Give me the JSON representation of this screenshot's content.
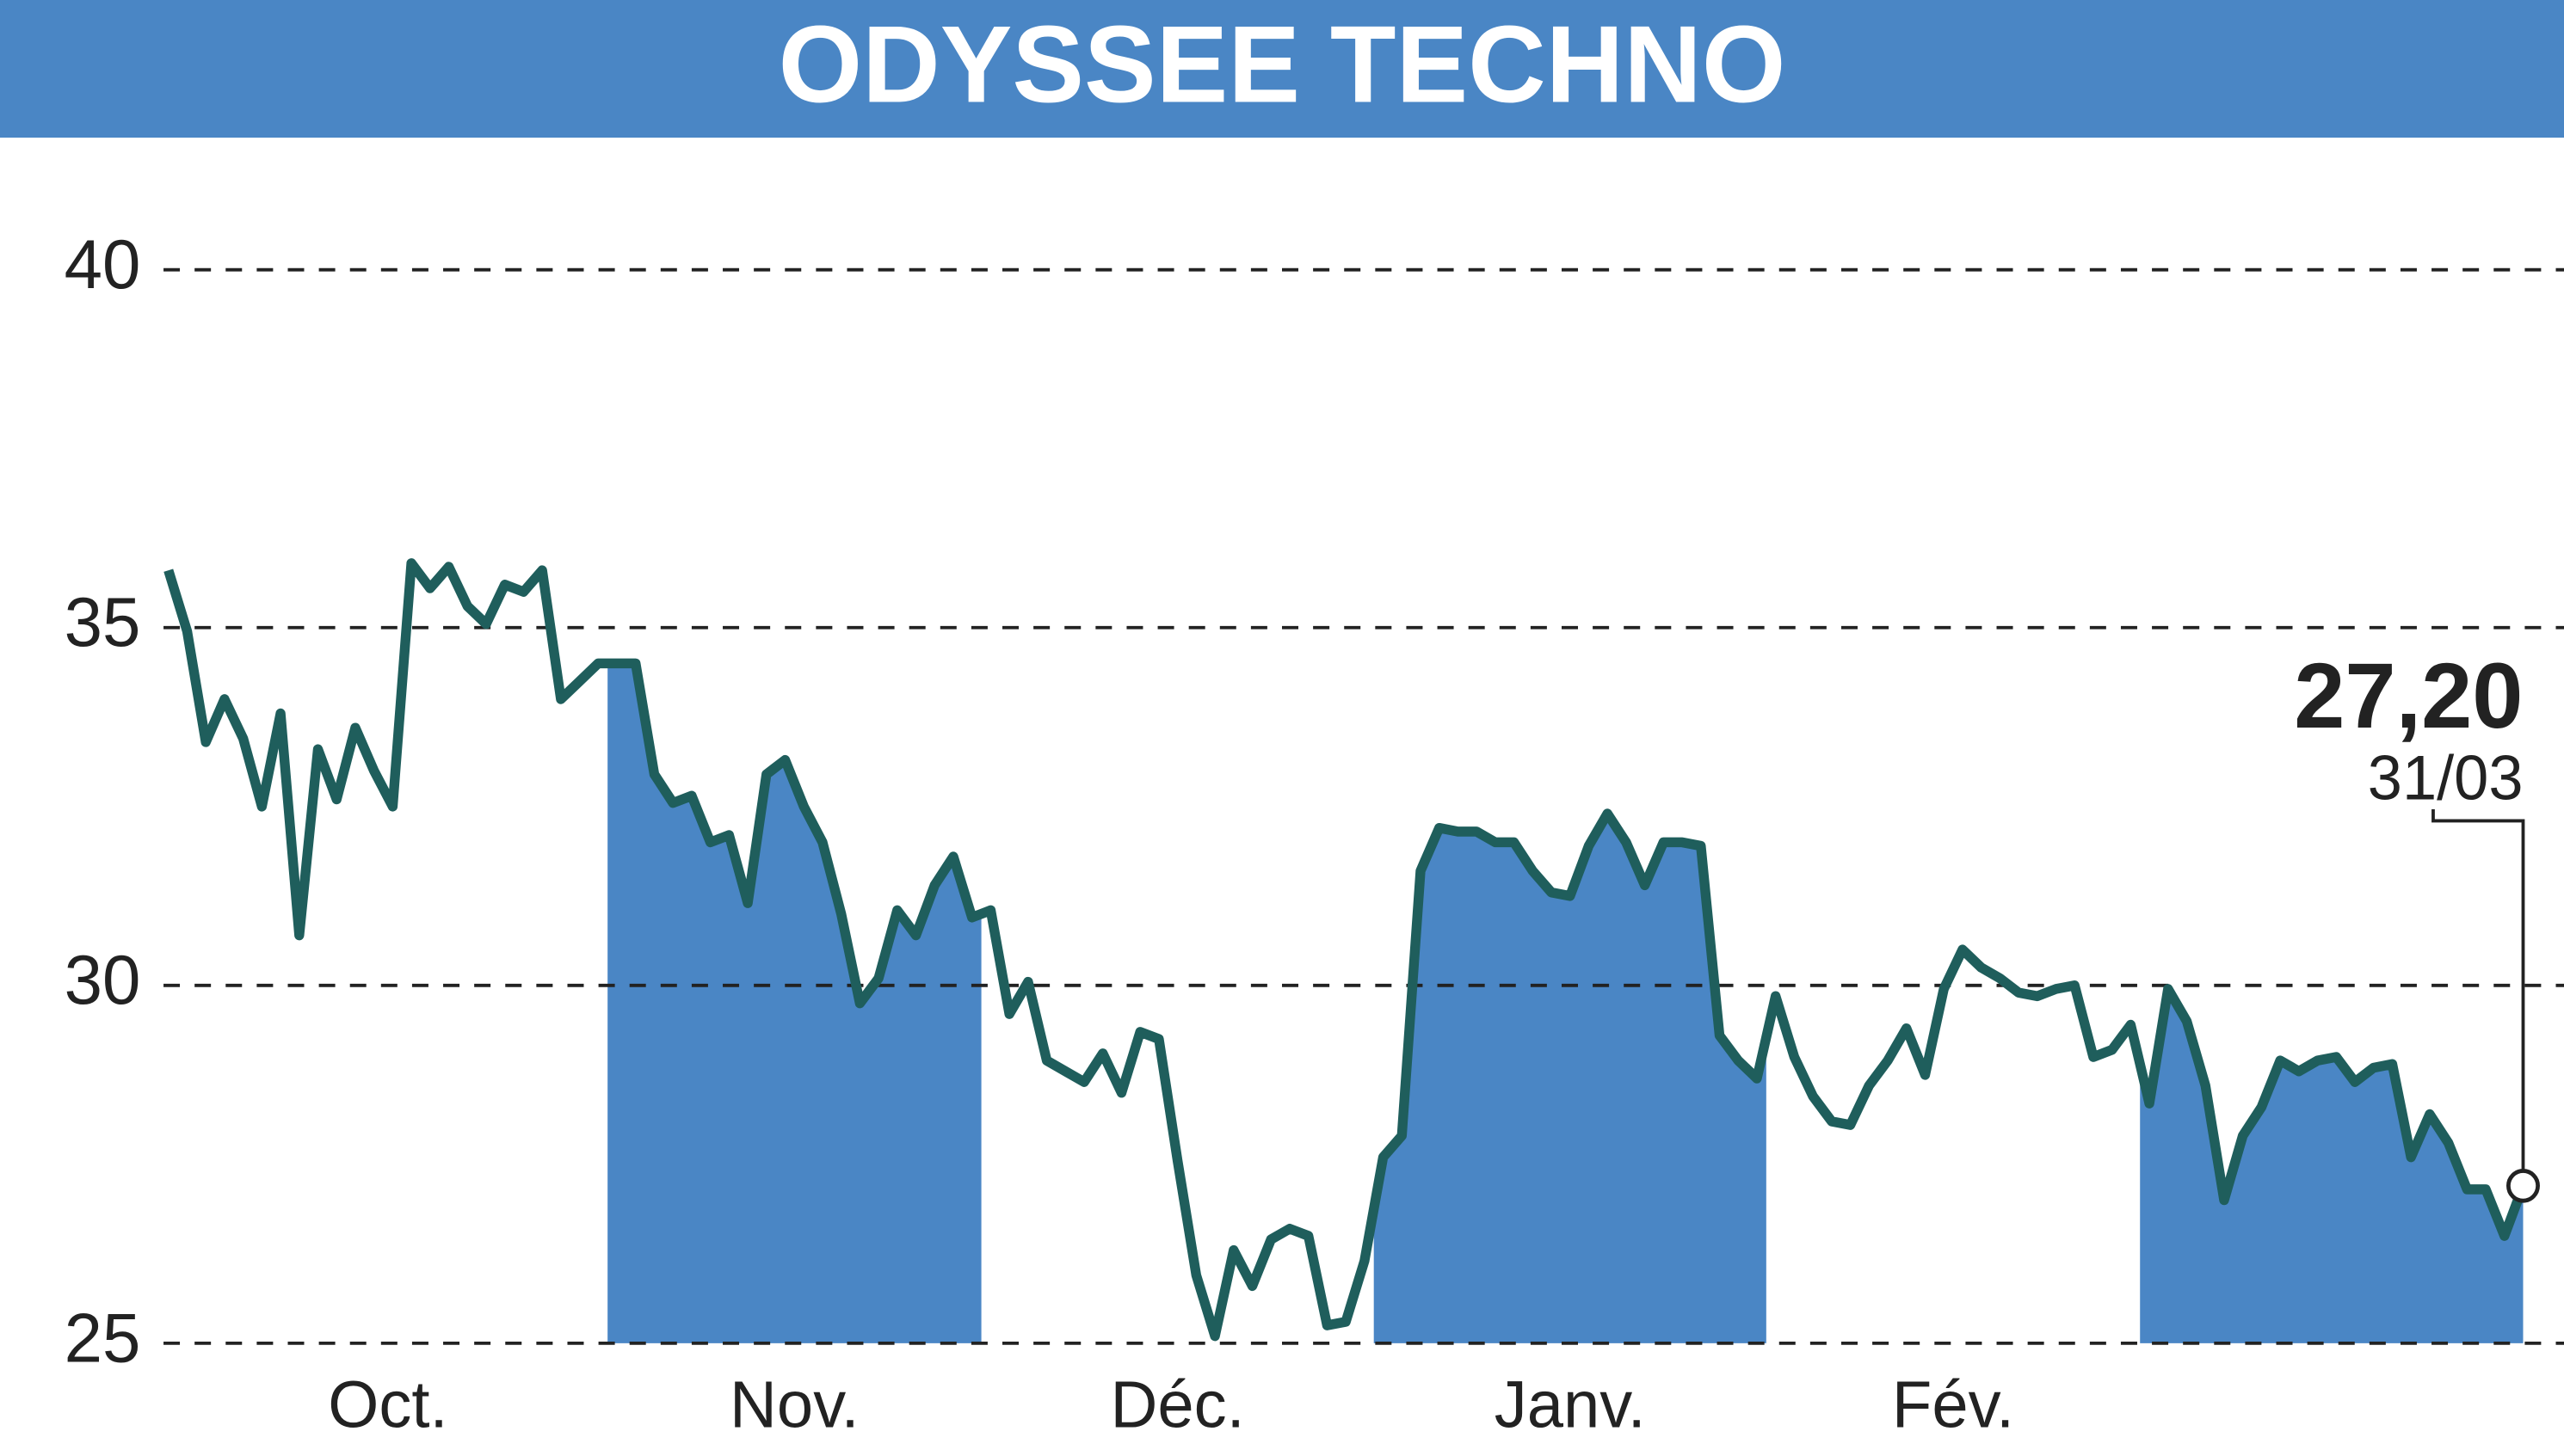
{
  "chart_data": {
    "type": "line",
    "title": "ODYSSEE TECHNO",
    "color": "#1f5e5c",
    "fill_color": "#4a86c5",
    "grid": true,
    "ylim": [
      25,
      41.8
    ],
    "yticks": [
      25,
      30,
      35,
      40
    ],
    "months": [
      {
        "name": "Oct.",
        "shaded": false,
        "values": [
          35.8,
          34.95,
          33.4,
          34.0,
          33.45,
          32.5,
          33.8,
          30.7,
          33.3,
          32.6,
          33.6,
          33.0,
          32.5,
          35.9,
          35.55,
          35.85,
          35.3,
          35.05,
          35.6,
          35.5,
          35.8,
          34.0,
          34.25,
          34.5
        ]
      },
      {
        "name": "Nov.",
        "shaded": true,
        "values": [
          34.5,
          34.5,
          32.95,
          32.55,
          32.65,
          32.0,
          32.1,
          31.15,
          32.95,
          33.15,
          32.5,
          32.0,
          31.0,
          29.75,
          30.1,
          31.05,
          30.7,
          31.4,
          31.8,
          30.95
        ]
      },
      {
        "name": "Déc.",
        "shaded": false,
        "values": [
          31.05,
          29.6,
          30.05,
          28.95,
          28.8,
          28.65,
          29.05,
          28.5,
          29.35,
          29.25,
          27.55,
          25.95,
          25.1,
          26.3,
          25.8,
          26.45,
          26.6,
          26.5,
          25.25,
          25.3,
          26.15
        ]
      },
      {
        "name": "Janv.",
        "shaded": true,
        "values": [
          27.6,
          27.9,
          31.6,
          32.2,
          32.15,
          32.15,
          32.0,
          32.0,
          31.6,
          31.3,
          31.25,
          31.95,
          32.4,
          32.0,
          31.4,
          32.0,
          32.0,
          31.95,
          29.3,
          28.95,
          28.7
        ]
      },
      {
        "name": "Fév.",
        "shaded": false,
        "values": [
          29.85,
          29.0,
          28.45,
          28.1,
          28.05,
          28.6,
          28.95,
          29.4,
          28.75,
          29.95,
          30.5,
          30.25,
          30.1,
          29.9,
          29.85,
          29.95,
          30.0,
          29.0,
          29.1,
          29.45
        ]
      },
      {
        "name": null,
        "shaded": true,
        "values": [
          28.35,
          29.95,
          29.5,
          28.6,
          27.0,
          27.9,
          28.3,
          28.95,
          28.8,
          28.95,
          29.0,
          28.65,
          28.85,
          28.9,
          27.6,
          28.2,
          27.8,
          27.15,
          27.15,
          26.5,
          27.2
        ]
      }
    ],
    "last_value_label": "27,20",
    "last_date": "31/03"
  }
}
